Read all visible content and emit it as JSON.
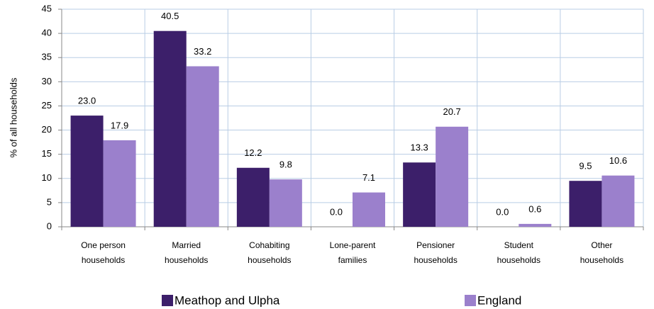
{
  "chart_data": {
    "type": "bar",
    "y_label": "% of all households",
    "categories": [
      [
        "One person",
        "households"
      ],
      [
        "Married",
        "households"
      ],
      [
        "Cohabiting",
        "households"
      ],
      [
        "Lone-parent",
        "families"
      ],
      [
        "Pensioner",
        "households"
      ],
      [
        "Student",
        "households"
      ],
      [
        "Other",
        "households"
      ]
    ],
    "series": [
      {
        "name": "Meathop and Ulpha",
        "color": "#3c1f6a",
        "values": [
          23.0,
          40.5,
          12.2,
          0.0,
          13.3,
          0.0,
          9.5
        ],
        "value_labels": [
          "23.0",
          "40.5",
          "12.2",
          "0.0",
          "13.3",
          "0.0",
          "9.5"
        ]
      },
      {
        "name": "England",
        "color": "#9b80cc",
        "values": [
          17.9,
          33.2,
          9.8,
          7.1,
          20.7,
          0.6,
          10.6
        ],
        "value_labels": [
          "17.9",
          "33.2",
          "9.8",
          "7.1",
          "20.7",
          "0.6",
          "10.6"
        ]
      }
    ],
    "ylim": [
      0,
      45
    ],
    "yticks": [
      0,
      5,
      10,
      15,
      20,
      25,
      30,
      35,
      40,
      45
    ],
    "grid": true
  }
}
